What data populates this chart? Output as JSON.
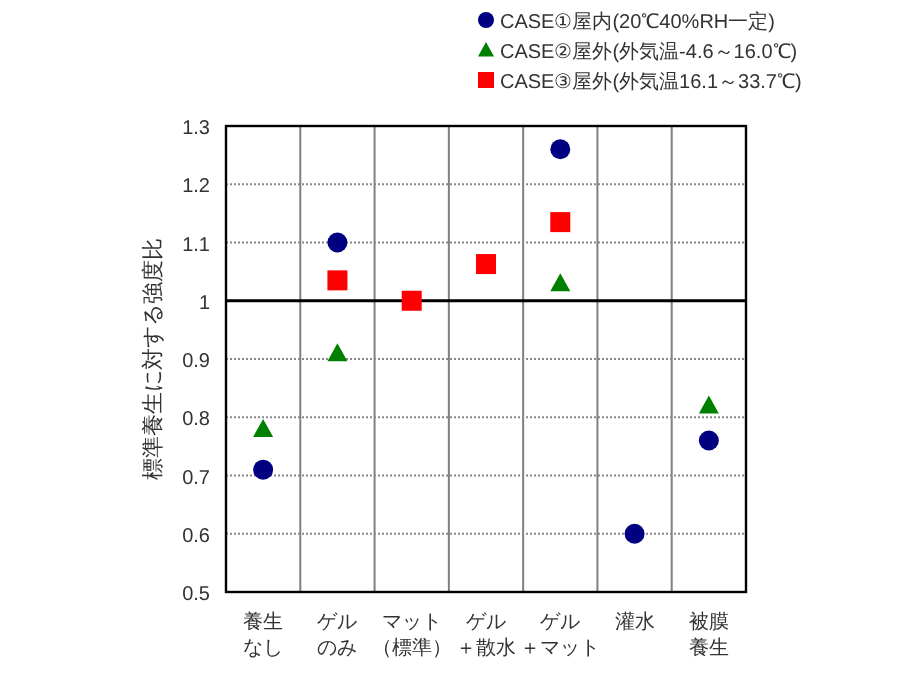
{
  "chart_data": {
    "type": "scatter",
    "ylabel": "標準養生に対する強度比",
    "categories": [
      "養生なし",
      "ゲルのみ",
      "マット（標準）",
      "ゲル＋散水",
      "ゲル＋マット",
      "灌水",
      "被膜養生"
    ],
    "series": [
      {
        "name": "CASE①屋内(20℃40%RH一定)",
        "color": "#000080",
        "marker": "circle",
        "values": [
          0.71,
          1.1,
          null,
          null,
          1.26,
          0.6,
          0.76
        ]
      },
      {
        "name": "CASE②屋外(外気温-4.6～16.0℃)",
        "color": "#008000",
        "marker": "triangle",
        "values": [
          0.78,
          0.91,
          null,
          null,
          1.03,
          null,
          0.82
        ]
      },
      {
        "name": "CASE③屋外(外気温16.1～33.7℃)",
        "color": "#ff0000",
        "marker": "square",
        "values": [
          null,
          1.035,
          1.0,
          1.063,
          1.135,
          null,
          null
        ]
      }
    ],
    "ylim": [
      0.5,
      1.3
    ],
    "yticks": [
      0.5,
      0.6,
      0.7,
      0.8,
      0.9,
      1,
      1.1,
      1.2,
      1.3
    ],
    "ref_lines": [
      {
        "axis": "y",
        "value": 1,
        "color": "#000000"
      }
    ],
    "grid": true,
    "legend": "top"
  }
}
